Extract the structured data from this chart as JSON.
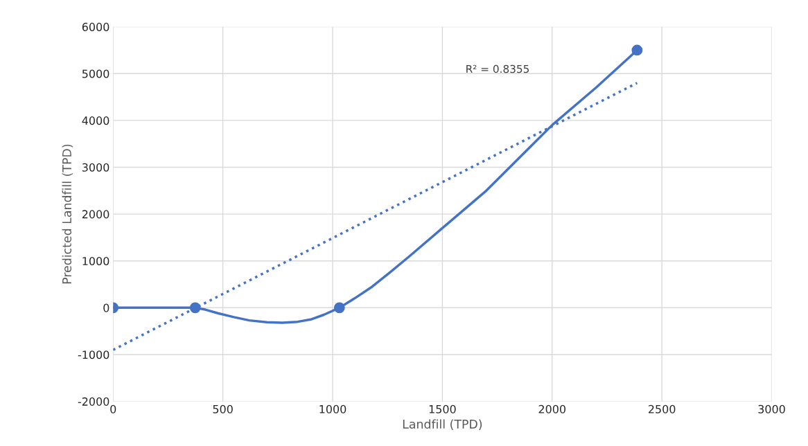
{
  "chart_data": {
    "type": "scatter",
    "xlabel": "Landfill (TPD)",
    "ylabel": "Predicted Landfill (TPD)",
    "xlim": [
      0,
      3000
    ],
    "xticks": [
      0,
      500,
      1000,
      1500,
      2000,
      2500,
      3000
    ],
    "ylim": [
      -2000,
      6000
    ],
    "yticks": [
      -2000,
      -1000,
      0,
      1000,
      2000,
      3000,
      4000,
      5000,
      6000
    ],
    "grid": true,
    "legend": false,
    "series": [
      {
        "type": "line",
        "color": "#4472c4",
        "marker": "none",
        "line_style": "solid",
        "x": [
          0,
          374,
          420,
          480,
          550,
          620,
          700,
          770,
          840,
          900,
          960,
          1031,
          1100,
          1180,
          1260,
          1350,
          1500,
          1700,
          2000,
          2200,
          2387
        ],
        "values": [
          0,
          0,
          -40,
          -120,
          -200,
          -270,
          -310,
          -320,
          -300,
          -250,
          -150,
          0,
          200,
          450,
          750,
          1100,
          1700,
          2500,
          3900,
          4700,
          5500
        ]
      },
      {
        "color": "#4472c4",
        "marker": "circle",
        "x": [
          0,
          374,
          1031,
          2387
        ],
        "values": [
          0,
          0,
          0,
          5500
        ]
      },
      {
        "type": "line",
        "color": "#4472c4",
        "marker": "none",
        "line_style": "dotted",
        "x": [
          0,
          2387
        ],
        "values": [
          -900,
          4800
        ]
      }
    ],
    "annotations": [
      "R² = 0.8355"
    ]
  }
}
